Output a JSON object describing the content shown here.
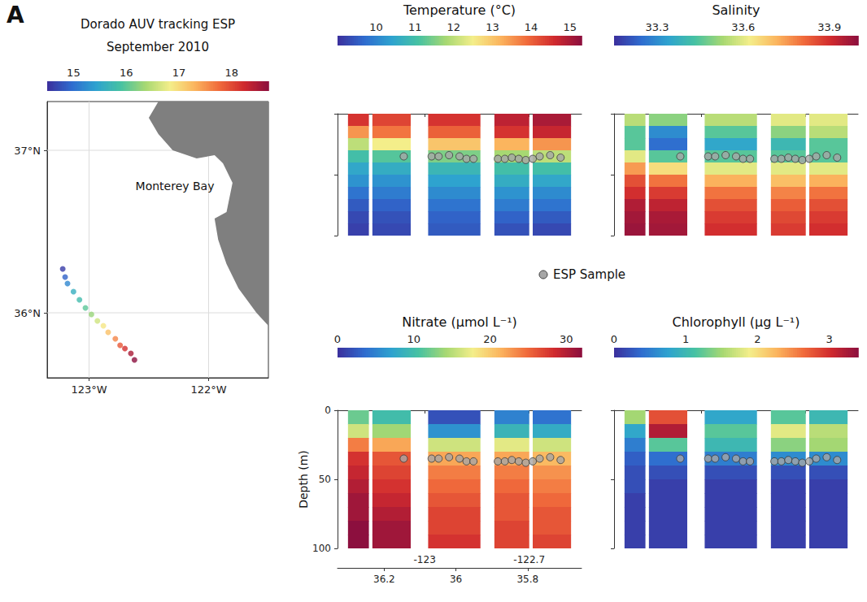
{
  "panel_label": "A",
  "esp_sample_label": "ESP Sample",
  "depth_bins": [
    0,
    10,
    20,
    30,
    40,
    50,
    60,
    70,
    80,
    90,
    100
  ],
  "column_lon": [
    [
      -123.22,
      -123.16
    ],
    [
      -123.15,
      -123.04
    ],
    [
      -122.99,
      -122.84
    ],
    [
      -122.8,
      -122.7
    ],
    [
      -122.69,
      -122.58
    ]
  ],
  "esp_samples": {
    "marker": "circle",
    "lon": [
      -123.06,
      -122.98,
      -122.96,
      -122.93,
      -122.9,
      -122.88,
      -122.86,
      -122.79,
      -122.77,
      -122.75,
      -122.73,
      -122.71,
      -122.69,
      -122.67,
      -122.64,
      -122.61
    ],
    "depth": [
      35,
      35,
      35,
      34,
      35,
      37,
      37,
      37,
      37,
      36,
      37,
      38,
      37,
      35,
      34,
      36
    ]
  },
  "chart_data": [
    {
      "type": "map_track",
      "title": "Dorado AUV tracking ESP",
      "subtitle": "September 2010",
      "colorbar": {
        "range": [
          14.5,
          18.7
        ],
        "ticks": [
          15,
          16,
          17,
          18
        ]
      },
      "xlim": [
        -123.35,
        -121.5
      ],
      "xticks": [
        {
          "value": -123,
          "label": "123°W"
        },
        {
          "value": -122,
          "label": "122°W"
        }
      ],
      "ylim": [
        35.6,
        37.3
      ],
      "yticks": [
        {
          "value": 36,
          "label": "36°N"
        },
        {
          "value": 37,
          "label": "37°N"
        }
      ],
      "grid": true,
      "annotation": "Monterey Bay",
      "land": [
        [
          -122.42,
          37.3
        ],
        [
          -122.5,
          37.2
        ],
        [
          -122.42,
          37.1
        ],
        [
          -122.3,
          37.0
        ],
        [
          -122.1,
          36.95
        ],
        [
          -121.95,
          36.97
        ],
        [
          -121.88,
          36.92
        ],
        [
          -121.8,
          36.8
        ],
        [
          -121.85,
          36.62
        ],
        [
          -121.95,
          36.58
        ],
        [
          -121.92,
          36.45
        ],
        [
          -121.85,
          36.3
        ],
        [
          -121.75,
          36.15
        ],
        [
          -121.6,
          36.0
        ],
        [
          -121.5,
          35.92
        ],
        [
          -121.5,
          37.3
        ]
      ],
      "track": {
        "marker": "circle",
        "lon": [
          -123.22,
          -123.2,
          -123.18,
          -123.13,
          -123.08,
          -123.03,
          -122.98,
          -122.93,
          -122.88,
          -122.84,
          -122.78,
          -122.74,
          -122.7,
          -122.65,
          -122.62
        ],
        "lat": [
          36.27,
          36.22,
          36.18,
          36.13,
          36.08,
          36.03,
          35.99,
          35.95,
          35.92,
          35.88,
          35.84,
          35.8,
          35.78,
          35.75,
          35.71
        ],
        "day": [
          14.6,
          14.9,
          15.2,
          15.6,
          15.8,
          16.0,
          16.3,
          16.6,
          16.9,
          17.2,
          17.6,
          17.9,
          18.2,
          18.5,
          18.7
        ]
      }
    },
    {
      "type": "curtain",
      "title": "Temperature (°C)",
      "colorbar": {
        "range": [
          9.0,
          15.3
        ],
        "ticks": [
          10,
          11,
          12,
          13,
          14,
          15
        ]
      },
      "xlim": [
        -123.25,
        -122.55
      ],
      "xticks": [
        -123,
        -122.7
      ],
      "ylim": [
        0,
        100
      ],
      "yticks": [
        0,
        50,
        100
      ],
      "tick_labels": false,
      "column_values": [
        [
          14.5,
          13.5,
          12.0,
          11.0,
          10.5,
          10.2,
          9.8,
          9.5,
          9.3,
          9.2
        ],
        [
          14.3,
          13.8,
          12.5,
          11.2,
          10.6,
          10.2,
          9.9,
          9.6,
          9.4,
          9.3
        ],
        [
          14.5,
          14.0,
          13.0,
          11.5,
          10.8,
          10.4,
          10.1,
          9.8,
          9.6,
          9.5
        ],
        [
          14.8,
          14.5,
          13.2,
          11.8,
          11.0,
          10.6,
          10.2,
          9.9,
          9.6,
          9.4
        ],
        [
          15.0,
          14.7,
          13.5,
          12.0,
          11.0,
          10.5,
          10.1,
          9.8,
          9.5,
          9.3
        ]
      ]
    },
    {
      "type": "curtain",
      "title": "Salinity",
      "colorbar": {
        "range": [
          33.15,
          34.0
        ],
        "ticks": [
          33.3,
          33.6,
          33.9
        ]
      },
      "xlim": [
        -123.25,
        -122.55
      ],
      "xticks": [
        -123,
        -122.7
      ],
      "ylim": [
        0,
        100
      ],
      "yticks": [
        0,
        50,
        100
      ],
      "tick_labels": false,
      "column_values": [
        [
          33.55,
          33.45,
          33.45,
          33.6,
          33.75,
          33.85,
          33.9,
          33.95,
          33.97,
          33.98
        ],
        [
          33.5,
          33.3,
          33.25,
          33.45,
          33.65,
          33.8,
          33.88,
          33.93,
          33.96,
          33.97
        ],
        [
          33.55,
          33.45,
          33.35,
          33.45,
          33.6,
          33.72,
          33.8,
          33.85,
          33.88,
          33.9
        ],
        [
          33.6,
          33.5,
          33.4,
          33.45,
          33.6,
          33.7,
          33.78,
          33.83,
          33.86,
          33.88
        ],
        [
          33.6,
          33.55,
          33.45,
          33.45,
          33.6,
          33.72,
          33.8,
          33.85,
          33.88,
          33.9
        ]
      ]
    },
    {
      "type": "curtain",
      "title": "Nitrate (µmol L⁻¹)",
      "colorbar": {
        "range": [
          0,
          32
        ],
        "ticks": [
          0,
          10,
          20,
          30
        ]
      },
      "xlim": [
        -123.25,
        -122.55
      ],
      "xticks": [
        -123,
        -122.7
      ],
      "x2lim": [
        35.65,
        36.33
      ],
      "x2ticks": [
        36.2,
        36,
        35.8
      ],
      "ylim": [
        0,
        100
      ],
      "yticks": [
        0,
        50,
        100
      ],
      "ylabel": "Depth (m)",
      "column_values": [
        [
          12,
          16,
          24,
          28,
          29,
          30,
          31,
          31,
          32,
          32
        ],
        [
          10,
          14,
          22,
          26,
          27,
          28,
          29,
          30,
          31,
          31
        ],
        [
          2,
          6,
          16,
          22,
          24,
          25,
          26,
          27,
          27,
          28
        ],
        [
          5,
          9,
          17,
          22,
          24,
          25,
          26,
          26,
          27,
          27
        ],
        [
          4,
          8,
          16,
          21,
          23,
          24,
          25,
          26,
          26,
          27
        ]
      ]
    },
    {
      "type": "curtain",
      "title": "Chlorophyll (µg L⁻¹)",
      "colorbar": {
        "range": [
          0,
          3.4
        ],
        "ticks": [
          0,
          1,
          2,
          3
        ]
      },
      "xlim": [
        -123.25,
        -122.55
      ],
      "xticks": [
        -123,
        -122.7
      ],
      "ylim": [
        0,
        100
      ],
      "yticks": [
        0,
        50,
        100
      ],
      "tick_labels": false,
      "column_values": [
        [
          1.5,
          0.8,
          0.5,
          0.3,
          0.2,
          0.2,
          0.1,
          0.1,
          0.1,
          0.1
        ],
        [
          2.8,
          3.2,
          1.2,
          0.4,
          0.2,
          0.1,
          0.1,
          0.1,
          0.1,
          0.1
        ],
        [
          0.8,
          1.2,
          1.0,
          0.5,
          0.2,
          0.1,
          0.1,
          0.1,
          0.1,
          0.1
        ],
        [
          1.2,
          1.8,
          1.4,
          0.6,
          0.2,
          0.1,
          0.1,
          0.1,
          0.1,
          0.1
        ],
        [
          1.0,
          1.6,
          1.5,
          0.6,
          0.2,
          0.1,
          0.1,
          0.1,
          0.1,
          0.1
        ]
      ]
    }
  ]
}
